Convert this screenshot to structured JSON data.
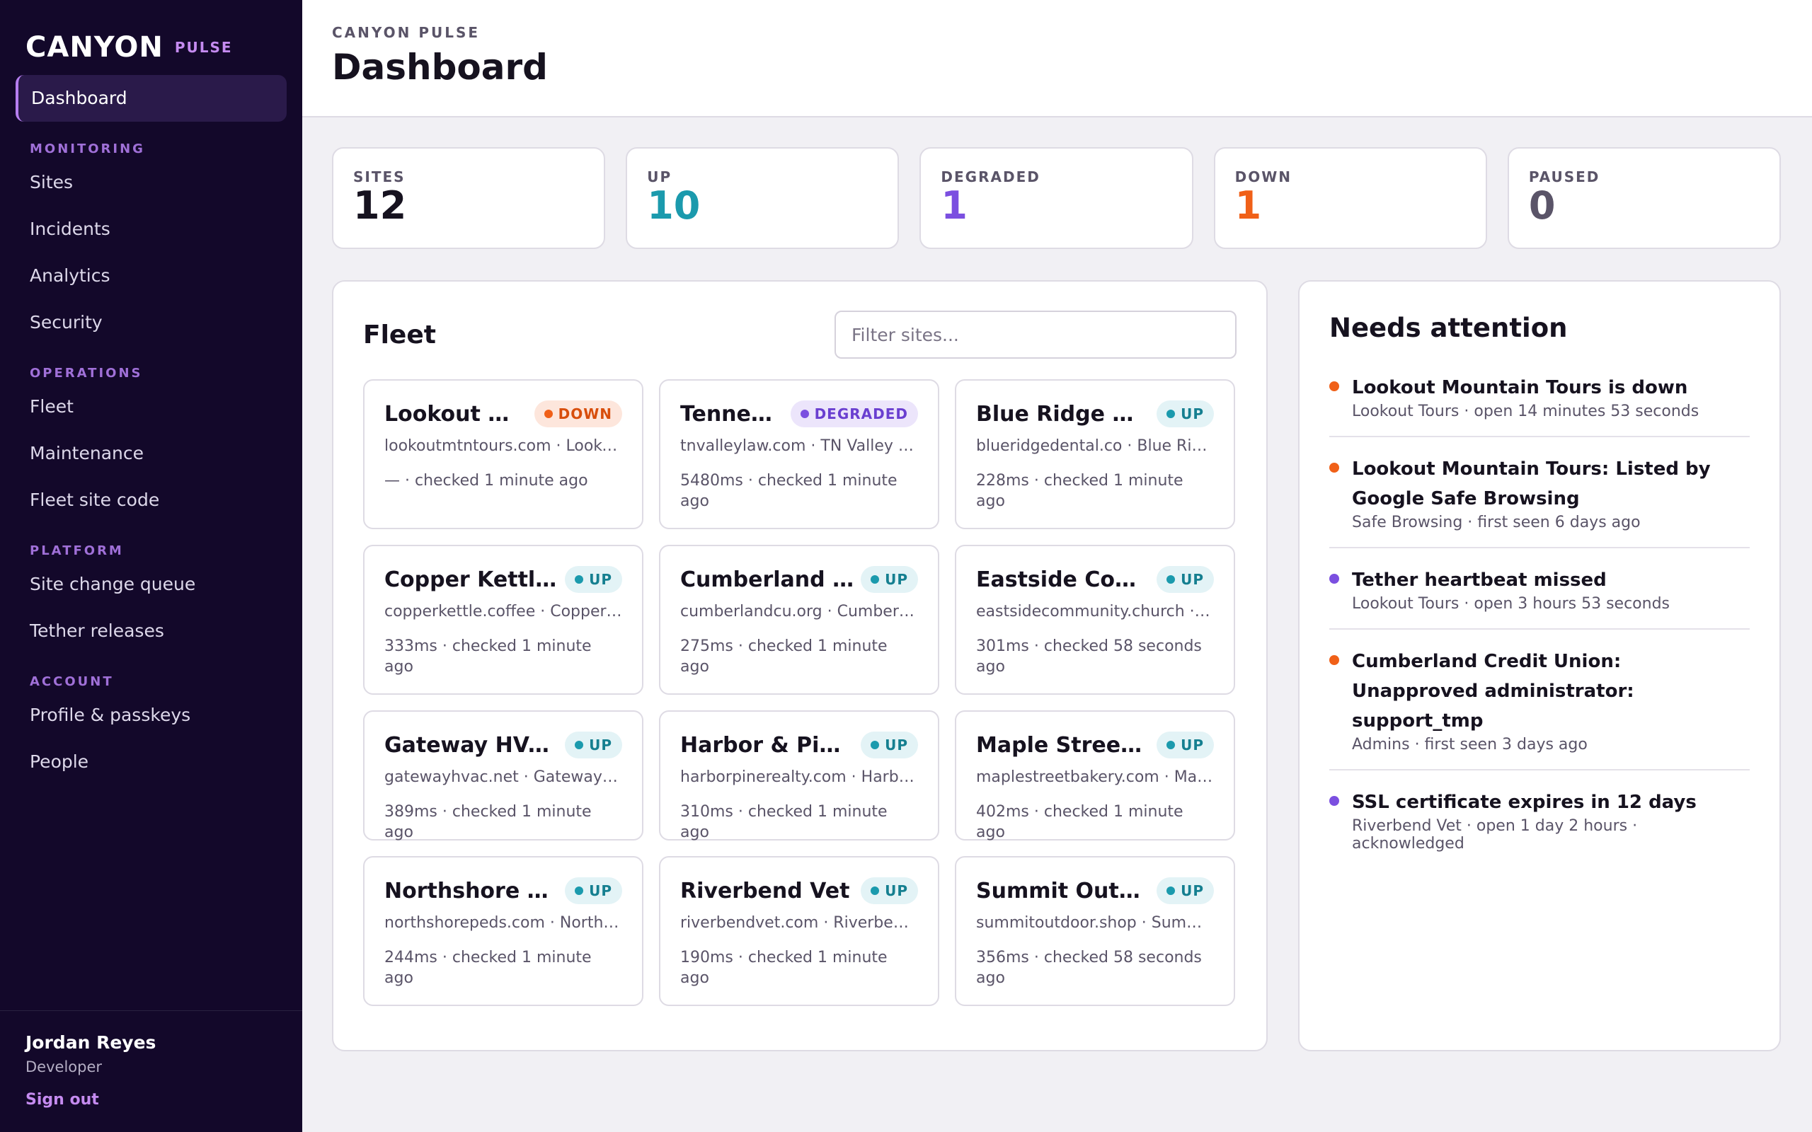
{
  "brand": {
    "logo": "CANYON",
    "product": "PULSE"
  },
  "nav": {
    "dashboard": "Dashboard",
    "sections": [
      {
        "title": "MONITORING",
        "items": [
          "Sites",
          "Incidents",
          "Analytics",
          "Security"
        ]
      },
      {
        "title": "OPERATIONS",
        "items": [
          "Fleet",
          "Maintenance",
          "Fleet site code"
        ]
      },
      {
        "title": "PLATFORM",
        "items": [
          "Site change queue",
          "Tether releases"
        ]
      },
      {
        "title": "ACCOUNT",
        "items": [
          "Profile & passkeys",
          "People"
        ]
      }
    ]
  },
  "user": {
    "name": "Jordan Reyes",
    "role": "Developer",
    "sign_out": "Sign out"
  },
  "header": {
    "eyebrow": "CANYON PULSE",
    "title": "Dashboard"
  },
  "stats": [
    {
      "label": "SITES",
      "value": "12",
      "color": "#16121f"
    },
    {
      "label": "UP",
      "value": "10",
      "color": "#1b9aad"
    },
    {
      "label": "DEGRADED",
      "value": "1",
      "color": "#7b4fe0"
    },
    {
      "label": "DOWN",
      "value": "1",
      "color": "#f06018"
    },
    {
      "label": "PAUSED",
      "value": "0",
      "color": "#5a5468"
    }
  ],
  "fleet": {
    "title": "Fleet",
    "filter_placeholder": "Filter sites...",
    "sites": [
      {
        "name": "Lookout Mountain Tours",
        "status": "DOWN",
        "host": "lookoutmtntours.com · Lookout Tours",
        "check": "— · checked 1 minute ago"
      },
      {
        "name": "Tennessee Valley Law",
        "status": "DEGRADED",
        "host": "tnvalleylaw.com · TN Valley Law",
        "check": "5480ms · checked 1 minute ago"
      },
      {
        "name": "Blue Ridge Dental",
        "status": "UP",
        "host": "blueridgedental.co · Blue Ridge Dental",
        "check": "228ms · checked 1 minute ago"
      },
      {
        "name": "Copper Kettle Coffee",
        "status": "UP",
        "host": "copperkettle.coffee · Copper Kettle",
        "check": "333ms · checked 1 minute ago"
      },
      {
        "name": "Cumberland Credit Union",
        "status": "UP",
        "host": "cumberlandcu.org · Cumberland CU",
        "check": "275ms · checked 1 minute ago"
      },
      {
        "name": "Eastside Community Church",
        "status": "UP",
        "host": "eastsidecommunity.church · Eastside",
        "check": "301ms · checked 58 seconds ago"
      },
      {
        "name": "Gateway HVAC",
        "status": "UP",
        "host": "gatewayhvac.net · Gateway HVAC",
        "check": "389ms · checked 1 minute ago"
      },
      {
        "name": "Harbor & Pine Realty",
        "status": "UP",
        "host": "harborpinerealty.com · Harbor & Pine",
        "check": "310ms · checked 1 minute ago"
      },
      {
        "name": "Maple Street Bakery",
        "status": "UP",
        "host": "maplestreetbakery.com · Maple Street",
        "check": "402ms · checked 1 minute ago"
      },
      {
        "name": "Northshore Pediatrics",
        "status": "UP",
        "host": "northshorepeds.com · Northshore Peds",
        "check": "244ms · checked 1 minute ago"
      },
      {
        "name": "Riverbend Vet",
        "status": "UP",
        "host": "riverbendvet.com · Riverbend Vet",
        "check": "190ms · checked 1 minute ago"
      },
      {
        "name": "Summit Outdoor",
        "status": "UP",
        "host": "summitoutdoor.shop · Summit Outdoor",
        "check": "356ms · checked 58 seconds ago"
      }
    ]
  },
  "status_styles": {
    "UP": {
      "bg": "#e3f3f6",
      "fg": "#157f90",
      "dot": "#1b9aad"
    },
    "DOWN": {
      "bg": "#fde6dc",
      "fg": "#d84e0c",
      "dot": "#f06018"
    },
    "DEGRADED": {
      "bg": "#ece5fb",
      "fg": "#6a3fd0",
      "dot": "#7b4fe0"
    }
  },
  "attention": {
    "title": "Needs attention",
    "items": [
      {
        "title": "Lookout Mountain Tours is down",
        "meta": "Lookout Tours · open 14 minutes 53 seconds",
        "color": "#f06018"
      },
      {
        "title": "Lookout Mountain Tours: Listed by Google Safe Browsing",
        "meta": "Safe Browsing · first seen 6 days ago",
        "color": "#f06018"
      },
      {
        "title": "Tether heartbeat missed",
        "meta": "Lookout Tours · open 3 hours 53 seconds",
        "color": "#7b4fe0"
      },
      {
        "title": "Cumberland Credit Union: Unapproved administrator: support_tmp",
        "meta": "Admins · first seen 3 days ago",
        "color": "#f06018"
      },
      {
        "title": "SSL certificate expires in 12 days",
        "meta": "Riverbend Vet · open 1 day 2 hours · acknowledged",
        "color": "#7b4fe0"
      }
    ]
  }
}
